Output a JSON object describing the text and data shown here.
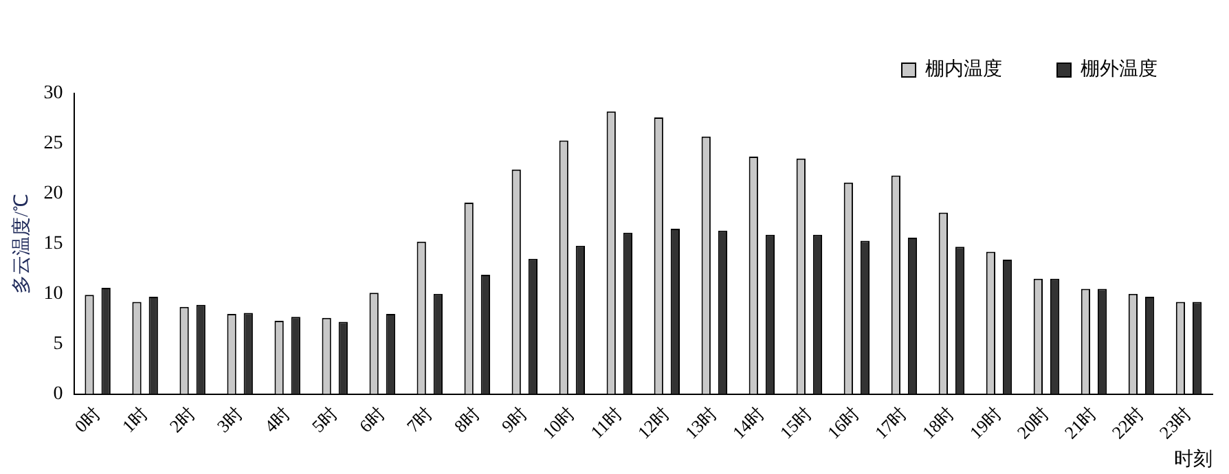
{
  "chart_data": {
    "type": "bar",
    "ylabel": "多云温度/℃",
    "xlabel": "时刻",
    "categories": [
      "0时",
      "1时",
      "2时",
      "3时",
      "4时",
      "5时",
      "6时",
      "7时",
      "8时",
      "9时",
      "10时",
      "11时",
      "12时",
      "13时",
      "14时",
      "15时",
      "16时",
      "17时",
      "18时",
      "19时",
      "20时",
      "21时",
      "22时",
      "23时"
    ],
    "series": [
      {
        "name": "棚内温度",
        "color": "#c8c8c8",
        "values": [
          9.9,
          9.2,
          8.7,
          8.0,
          7.3,
          7.6,
          10.1,
          15.2,
          19.1,
          22.4,
          25.3,
          28.2,
          27.6,
          25.7,
          23.7,
          23.5,
          21.1,
          21.8,
          18.1,
          14.2,
          11.5,
          10.5,
          10.0,
          9.2
        ]
      },
      {
        "name": "棚外温度",
        "color": "#333333",
        "values": [
          10.6,
          9.7,
          8.9,
          8.1,
          7.7,
          7.2,
          8.0,
          10.0,
          11.9,
          13.5,
          14.8,
          16.1,
          16.5,
          16.3,
          15.9,
          15.9,
          15.3,
          15.6,
          14.7,
          13.4,
          11.5,
          10.5,
          9.7,
          9.2
        ]
      }
    ],
    "ylim": [
      0,
      30
    ],
    "yticks": [
      0,
      5,
      10,
      15,
      20,
      25,
      30
    ],
    "grid": false,
    "legend": "top right"
  }
}
